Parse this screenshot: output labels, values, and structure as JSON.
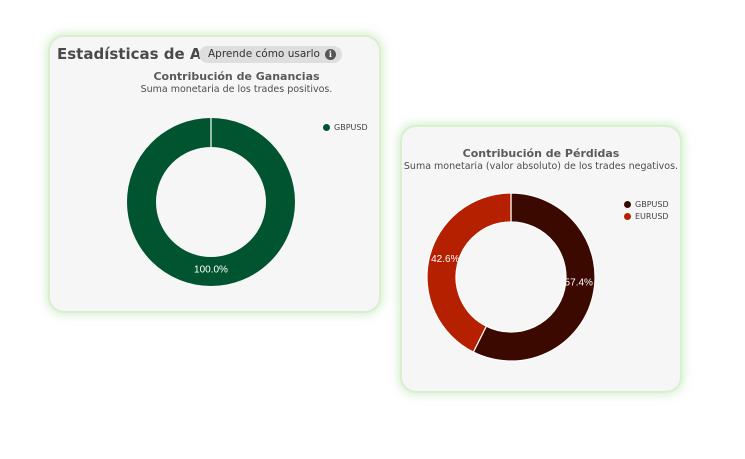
{
  "panel": {
    "title": "Estadísticas de Activo",
    "learn_label": "Aprende cómo usarlo",
    "info_icon": "info-icon"
  },
  "colors": {
    "gbpusd_gain": "#005530",
    "gbpusd_loss": "#3b0900",
    "eurusd_loss": "#b52000"
  },
  "chart_data": [
    {
      "type": "pie",
      "variant": "donut",
      "title": "Contribución de Ganancias",
      "subtitle": "Suma monetaria de los trades positivos.",
      "legend_position": "top-right",
      "series": [
        {
          "name": "GBPUSD",
          "value": 100.0,
          "label": "100.0%",
          "color": "#005530"
        }
      ]
    },
    {
      "type": "pie",
      "variant": "donut",
      "title": "Contribución de Pérdidas",
      "subtitle": "Suma monetaria (valor absoluto) de los trades negativos.",
      "legend_position": "top-right",
      "series": [
        {
          "name": "GBPUSD",
          "value": 57.4,
          "label": "57.4%",
          "color": "#3b0900"
        },
        {
          "name": "EURUSD",
          "value": 42.6,
          "label": "42.6%",
          "color": "#b52000"
        }
      ]
    }
  ]
}
